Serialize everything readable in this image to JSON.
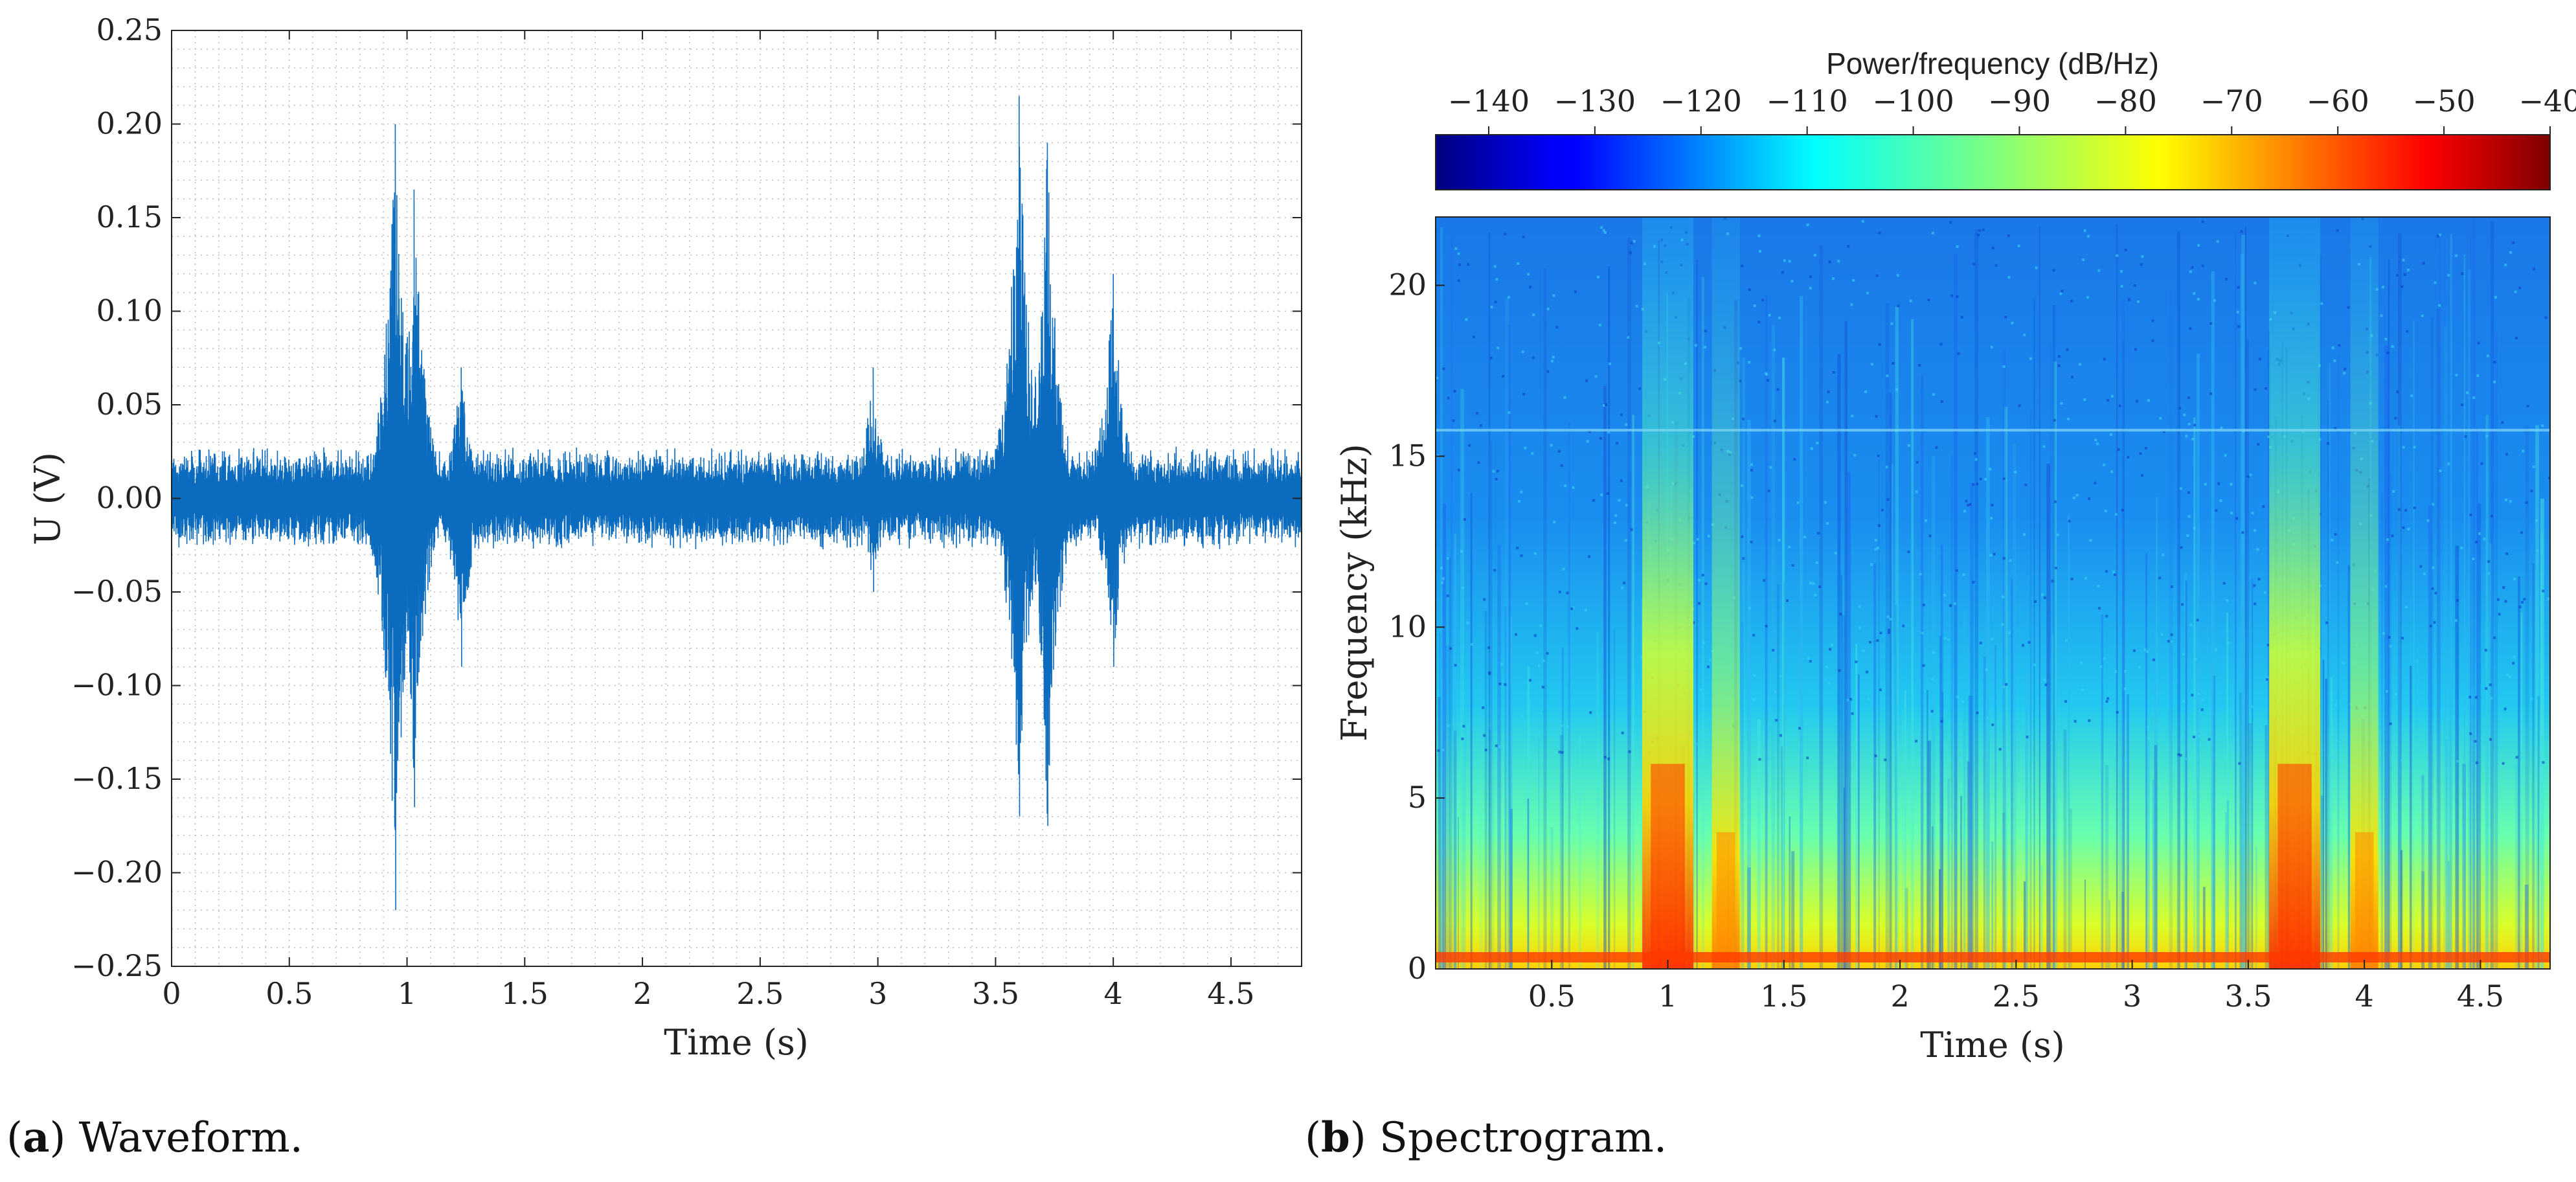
{
  "chart_data": [
    {
      "type": "line",
      "panel": "a",
      "caption_letter": "a",
      "caption_text": "Waveform.",
      "xlabel": "Time (s)",
      "ylabel": "U (V)",
      "xlim": [
        0,
        4.8
      ],
      "ylim": [
        -0.25,
        0.25
      ],
      "xticks": [
        0,
        0.5,
        1,
        1.5,
        2,
        2.5,
        3,
        3.5,
        4,
        4.5
      ],
      "xtick_labels": [
        "0",
        "0.5",
        "1",
        "1.5",
        "2",
        "2.5",
        "3",
        "3.5",
        "4",
        "4.5"
      ],
      "yticks": [
        -0.25,
        -0.2,
        -0.15,
        -0.1,
        -0.05,
        0,
        0.05,
        0.1,
        0.15,
        0.2,
        0.25
      ],
      "ytick_labels": [
        "−0.25",
        "−0.20",
        "−0.15",
        "−0.10",
        "−0.05",
        "0.00",
        "0.05",
        "0.10",
        "0.15",
        "0.20",
        "0.25"
      ],
      "grid": true,
      "series": [
        {
          "name": "waveform",
          "color": "#0b6bbf",
          "baseline_noise_amplitude": 0.02,
          "envelope": [
            {
              "t": 0.95,
              "max": 0.2,
              "min": -0.22
            },
            {
              "t": 1.03,
              "max": 0.165,
              "min": -0.165
            },
            {
              "t": 1.23,
              "max": 0.07,
              "min": -0.09
            },
            {
              "t": 2.98,
              "max": 0.07,
              "min": -0.05
            },
            {
              "t": 3.6,
              "max": 0.215,
              "min": -0.17
            },
            {
              "t": 3.72,
              "max": 0.19,
              "min": -0.175
            },
            {
              "t": 4.0,
              "max": 0.12,
              "min": -0.09
            }
          ]
        }
      ]
    },
    {
      "type": "heatmap",
      "panel": "b",
      "caption_letter": "b",
      "caption_text": "Spectrogram.",
      "xlabel": "Time (s)",
      "ylabel": "Frequency (kHz)",
      "xlim": [
        0,
        4.8
      ],
      "ylim": [
        0,
        22
      ],
      "xticks": [
        0.5,
        1,
        1.5,
        2,
        2.5,
        3,
        3.5,
        4,
        4.5
      ],
      "xtick_labels": [
        "0.5",
        "1",
        "1.5",
        "2",
        "2.5",
        "3",
        "3.5",
        "4",
        "4.5"
      ],
      "yticks": [
        0,
        5,
        10,
        15,
        20
      ],
      "ytick_labels": [
        "0",
        "5",
        "10",
        "15",
        "20"
      ],
      "colorbar": {
        "title": "Power/frequency (dB/Hz)",
        "range": [
          -145,
          -40
        ],
        "ticks": [
          -140,
          -130,
          -120,
          -110,
          -100,
          -90,
          -80,
          -70,
          -60,
          -50,
          -40
        ],
        "tick_labels": [
          "−140",
          "−130",
          "−120",
          "−110",
          "−100",
          "−90",
          "−80",
          "−70",
          "−60",
          "−50",
          "−40"
        ],
        "colormap": "jet"
      },
      "events": [
        {
          "t": 1.0,
          "freq_extent_khz": 6,
          "peak_db": -55
        },
        {
          "t": 1.25,
          "freq_extent_khz": 4,
          "peak_db": -65
        },
        {
          "t": 3.7,
          "freq_extent_khz": 6,
          "peak_db": -55
        },
        {
          "t": 4.0,
          "freq_extent_khz": 4,
          "peak_db": -65
        }
      ],
      "tone_band_khz": 15.8
    }
  ],
  "colors": {
    "line": "#0b6bbf",
    "axis": "#222222",
    "grid": "#bdbdbd"
  }
}
